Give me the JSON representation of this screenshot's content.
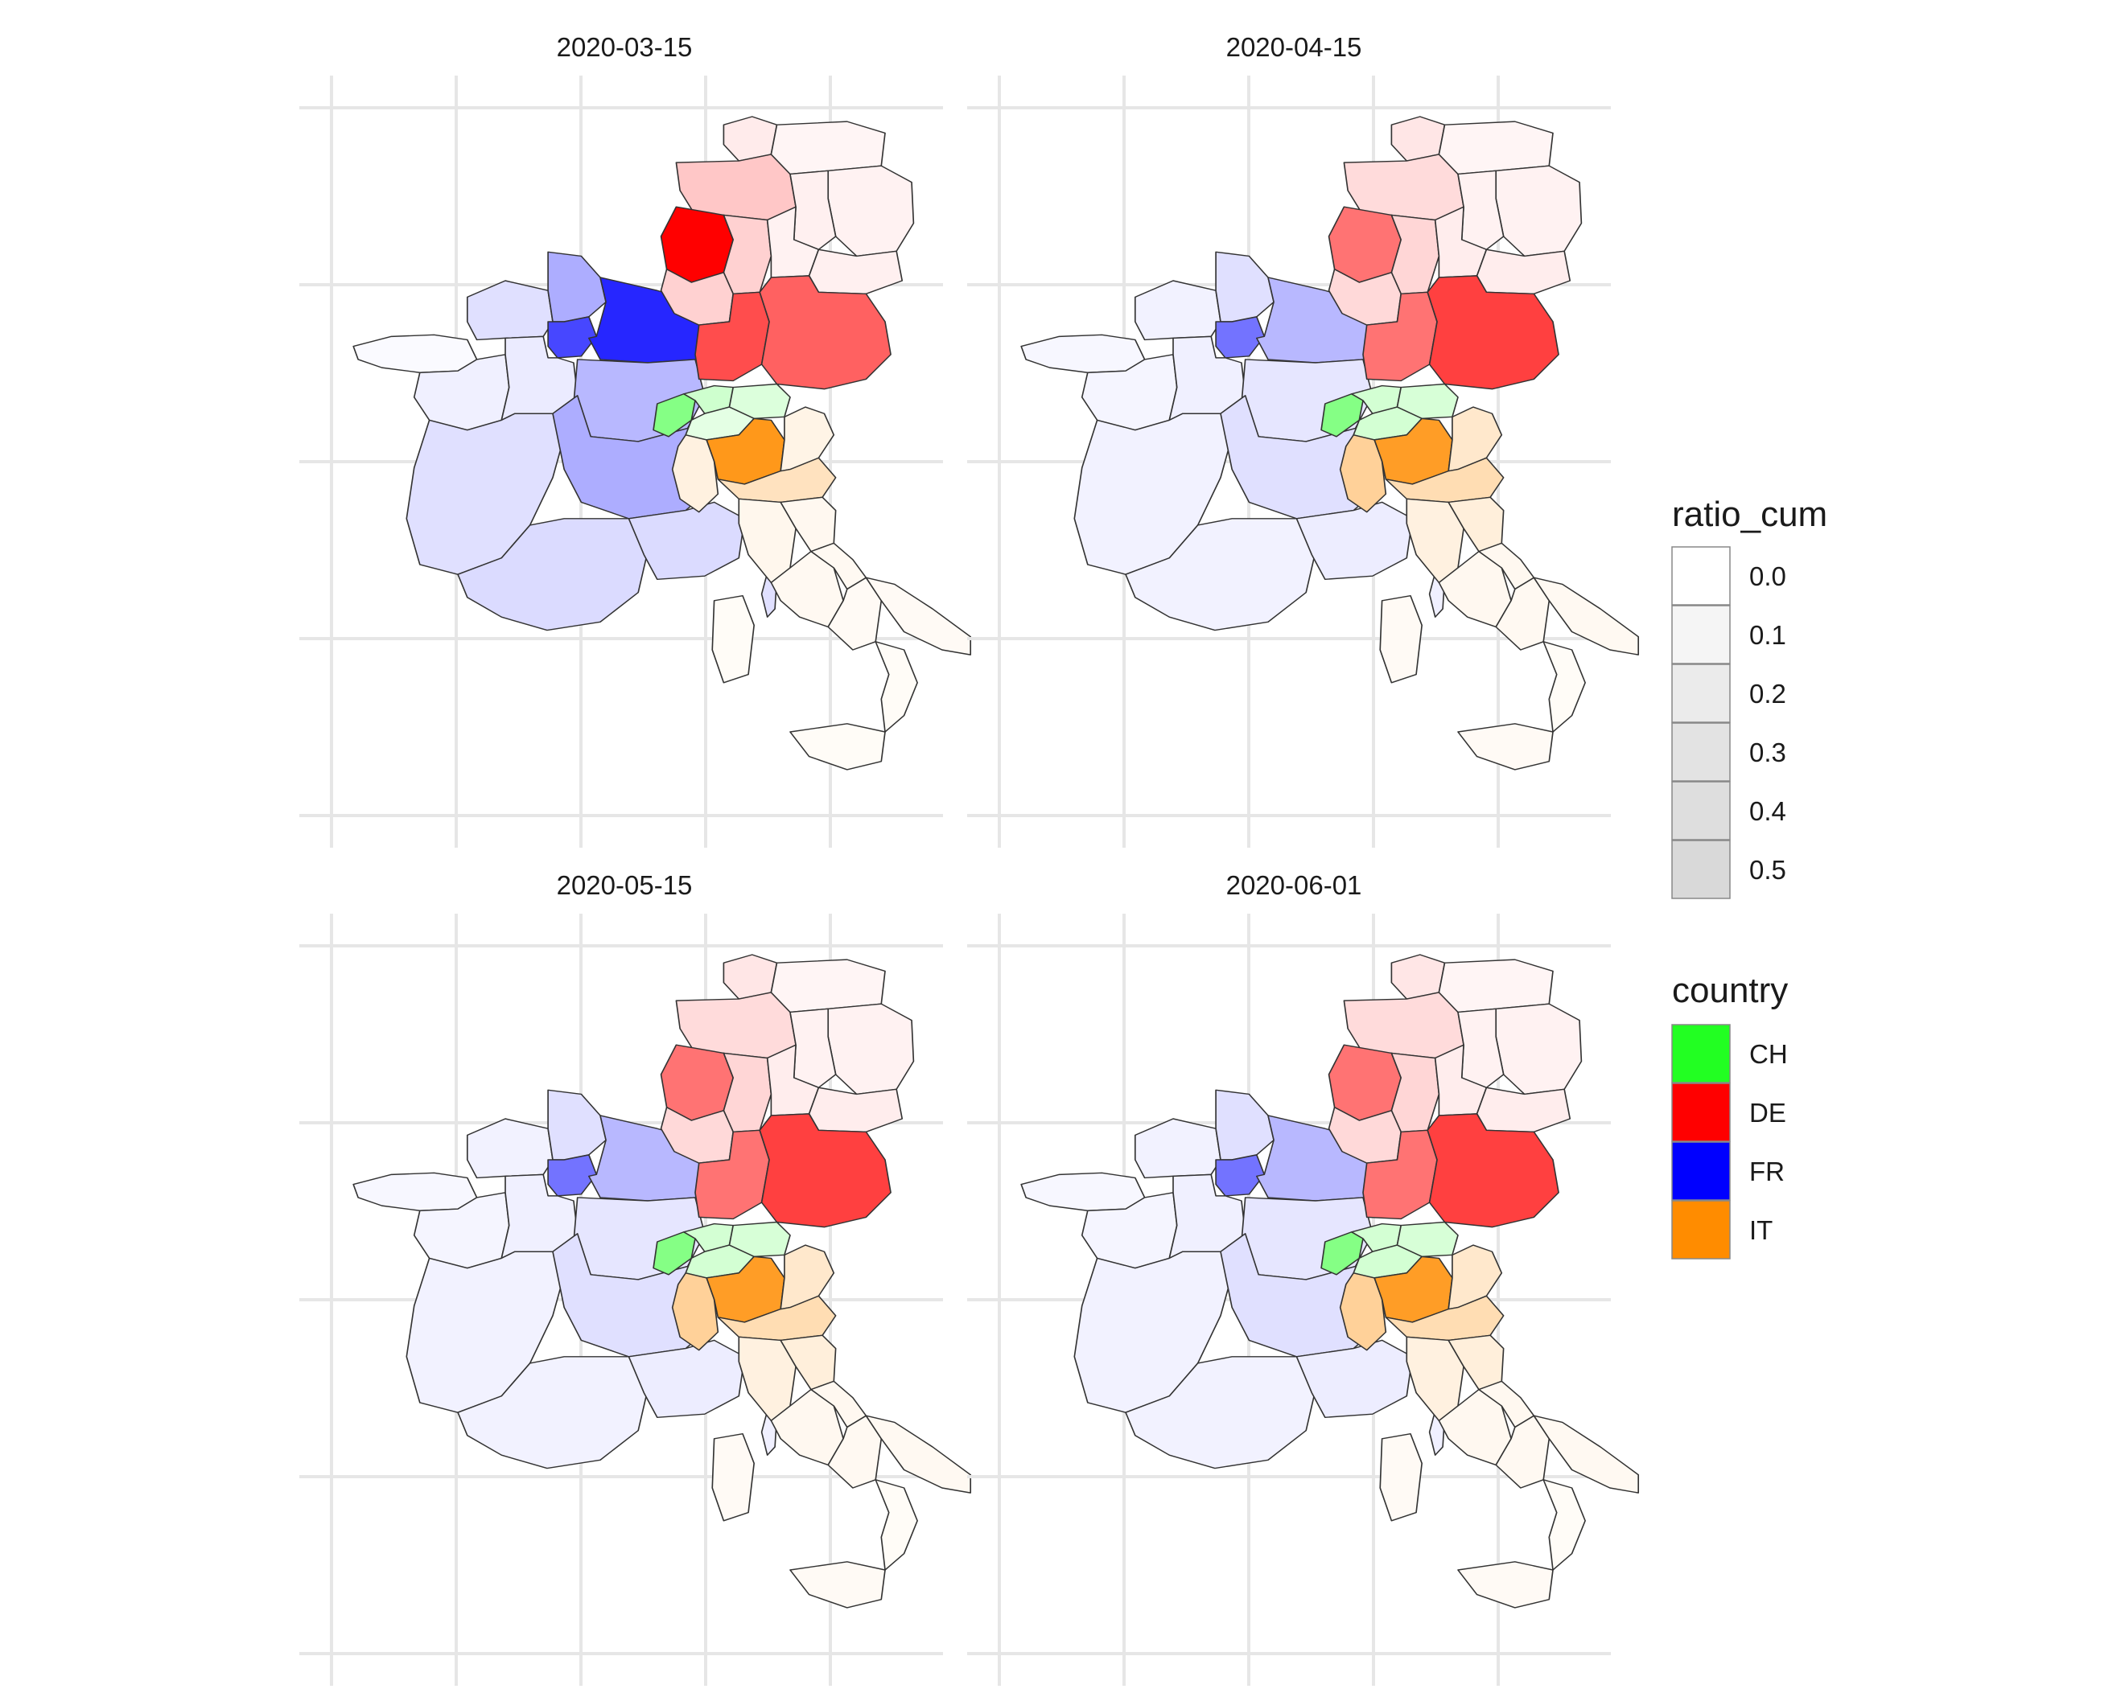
{
  "panels": [
    {
      "title": "2020-03-15",
      "regions": {
        "bretagne": 0.02,
        "normandie": 0.12,
        "hauts-de-france": 0.32,
        "grand-est": 0.85,
        "ile-de-france": 0.72,
        "pays-de-la-loire": 0.06,
        "centre-val-de-loire": 0.08,
        "bourgogne-franche-comte": 0.28,
        "nouvelle-aquitaine": 0.12,
        "auvergne-rhone-alpes": 0.32,
        "occitanie": 0.14,
        "paca": 0.14,
        "corse": 0.12,
        "schleswig-holstein": 0.08,
        "niedersachsen": 0.22,
        "mecklenburg": 0.04,
        "brandenburg": 0.05,
        "sachsen-anhalt": 0.06,
        "nordrhein-westfalen": 1.0,
        "hessen": 0.18,
        "thueringen": 0.05,
        "sachsen": 0.06,
        "rheinland-pfalz": 0.18,
        "baden-wuerttemberg": 0.7,
        "bayern": 0.62,
        "ch-west": 0.55,
        "ch-north": 0.22,
        "ch-east": 0.16,
        "ch-south": 0.12,
        "lombardia": 0.9,
        "piemonte": 0.12,
        "veneto": 0.1,
        "emilia-romagna": 0.25,
        "toscana": 0.07,
        "marche": 0.06,
        "lazio": 0.05,
        "abruzzo": 0.05,
        "campania": 0.04,
        "puglia": 0.04,
        "calabria": 0.03,
        "sicilia": 0.03,
        "sardegna": 0.03
      }
    },
    {
      "title": "2020-04-15",
      "regions": {
        "bretagne": 0.03,
        "normandie": 0.05,
        "hauts-de-france": 0.12,
        "grand-est": 0.28,
        "ile-de-france": 0.55,
        "pays-de-la-loire": 0.04,
        "centre-val-de-loire": 0.06,
        "bourgogne-franche-comte": 0.1,
        "nouvelle-aquitaine": 0.05,
        "auvergne-rhone-alpes": 0.12,
        "occitanie": 0.05,
        "paca": 0.07,
        "corse": 0.06,
        "schleswig-holstein": 0.1,
        "niedersachsen": 0.14,
        "mecklenburg": 0.04,
        "brandenburg": 0.05,
        "sachsen-anhalt": 0.05,
        "nordrhein-westfalen": 0.55,
        "hessen": 0.16,
        "thueringen": 0.07,
        "sachsen": 0.07,
        "rheinland-pfalz": 0.15,
        "baden-wuerttemberg": 0.55,
        "bayern": 0.75,
        "ch-west": 0.55,
        "ch-north": 0.2,
        "ch-east": 0.18,
        "ch-south": 0.2,
        "lombardia": 0.85,
        "piemonte": 0.4,
        "veneto": 0.2,
        "emilia-romagna": 0.3,
        "toscana": 0.12,
        "marche": 0.14,
        "lazio": 0.06,
        "abruzzo": 0.06,
        "campania": 0.05,
        "puglia": 0.05,
        "calabria": 0.03,
        "sicilia": 0.04,
        "sardegna": 0.04
      }
    },
    {
      "title": "2020-05-15",
      "regions": {
        "bretagne": 0.03,
        "normandie": 0.05,
        "hauts-de-france": 0.12,
        "grand-est": 0.28,
        "ile-de-france": 0.55,
        "pays-de-la-loire": 0.04,
        "centre-val-de-loire": 0.06,
        "bourgogne-franche-comte": 0.1,
        "nouvelle-aquitaine": 0.05,
        "auvergne-rhone-alpes": 0.12,
        "occitanie": 0.05,
        "paca": 0.07,
        "corse": 0.06,
        "schleswig-holstein": 0.1,
        "niedersachsen": 0.14,
        "mecklenburg": 0.04,
        "brandenburg": 0.05,
        "sachsen-anhalt": 0.05,
        "nordrhein-westfalen": 0.55,
        "hessen": 0.16,
        "thueringen": 0.07,
        "sachsen": 0.07,
        "rheinland-pfalz": 0.15,
        "baden-wuerttemberg": 0.55,
        "bayern": 0.75,
        "ch-west": 0.55,
        "ch-north": 0.2,
        "ch-east": 0.18,
        "ch-south": 0.2,
        "lombardia": 0.85,
        "piemonte": 0.4,
        "veneto": 0.2,
        "emilia-romagna": 0.3,
        "toscana": 0.12,
        "marche": 0.14,
        "lazio": 0.06,
        "abruzzo": 0.06,
        "campania": 0.05,
        "puglia": 0.05,
        "calabria": 0.03,
        "sicilia": 0.04,
        "sardegna": 0.04
      }
    },
    {
      "title": "2020-06-01",
      "regions": {
        "bretagne": 0.03,
        "normandie": 0.05,
        "hauts-de-france": 0.12,
        "grand-est": 0.28,
        "ile-de-france": 0.55,
        "pays-de-la-loire": 0.04,
        "centre-val-de-loire": 0.06,
        "bourgogne-franche-comte": 0.1,
        "nouvelle-aquitaine": 0.05,
        "auvergne-rhone-alpes": 0.12,
        "occitanie": 0.05,
        "paca": 0.07,
        "corse": 0.06,
        "schleswig-holstein": 0.1,
        "niedersachsen": 0.14,
        "mecklenburg": 0.04,
        "brandenburg": 0.05,
        "sachsen-anhalt": 0.05,
        "nordrhein-westfalen": 0.55,
        "hessen": 0.16,
        "thueringen": 0.07,
        "sachsen": 0.07,
        "rheinland-pfalz": 0.15,
        "baden-wuerttemberg": 0.55,
        "bayern": 0.75,
        "ch-west": 0.55,
        "ch-north": 0.2,
        "ch-east": 0.18,
        "ch-south": 0.2,
        "lombardia": 0.85,
        "piemonte": 0.4,
        "veneto": 0.2,
        "emilia-romagna": 0.3,
        "toscana": 0.12,
        "marche": 0.14,
        "lazio": 0.06,
        "abruzzo": 0.06,
        "campania": 0.05,
        "puglia": 0.05,
        "calabria": 0.03,
        "sicilia": 0.04,
        "sardegna": 0.04
      }
    }
  ],
  "legend_ratio": {
    "title": "ratio_cum",
    "labels": [
      "0.0",
      "0.1",
      "0.2",
      "0.3",
      "0.4",
      "0.5"
    ]
  },
  "legend_country": {
    "title": "country",
    "items": [
      {
        "label": "CH",
        "color": "#22ff22"
      },
      {
        "label": "DE",
        "color": "#ff0000"
      },
      {
        "label": "FR",
        "color": "#0000ff"
      },
      {
        "label": "IT",
        "color": "#ff8c00"
      }
    ]
  }
}
